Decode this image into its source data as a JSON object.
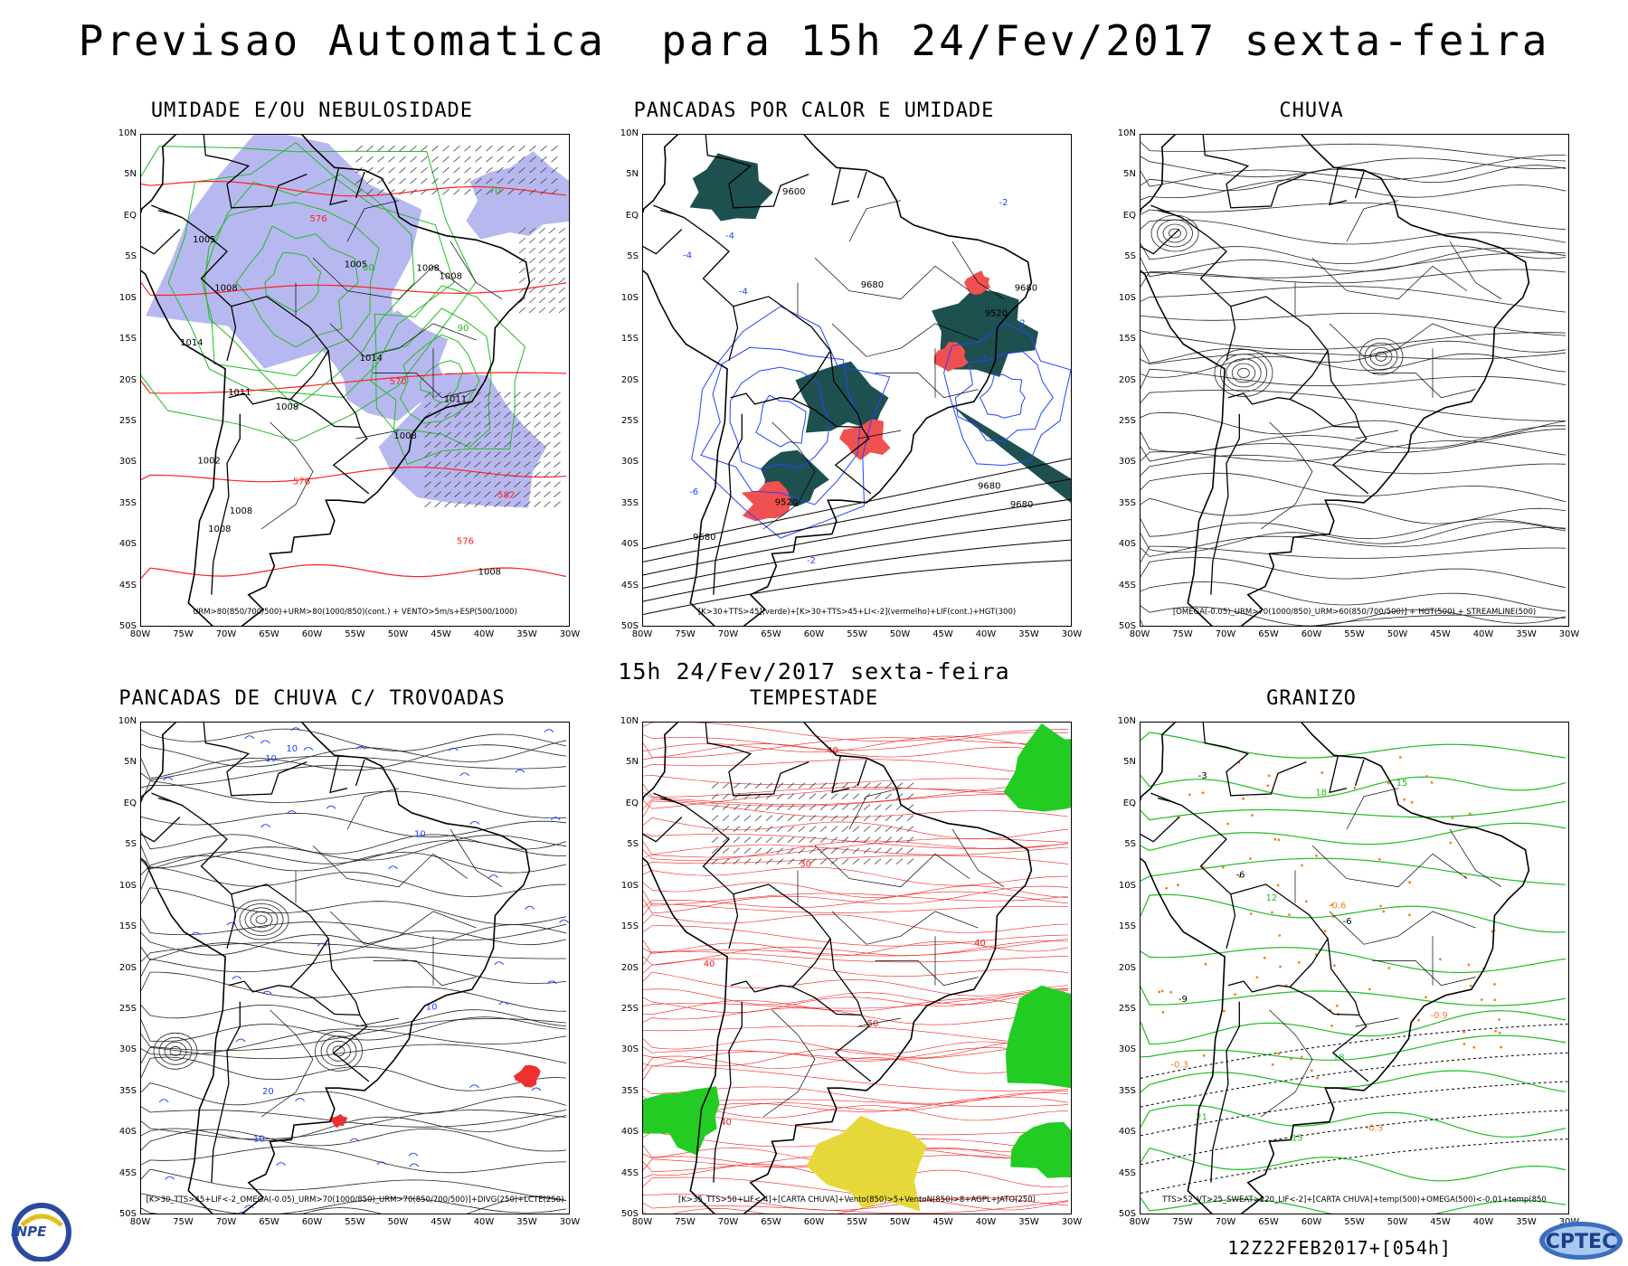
{
  "title": "Previsao Automatica  para 15h 24/Fev/2017 sexta-feira",
  "subtitle": "15h 24/Fev/2017 sexta-feira",
  "footer_run": "12Z22FEB2017+[054h]",
  "logos": {
    "left": "INPE",
    "right": "CPTEC"
  },
  "lat_labels": [
    "10N",
    "5N",
    "EQ",
    "5S",
    "10S",
    "15S",
    "20S",
    "25S",
    "30S",
    "35S",
    "40S",
    "45S",
    "50S"
  ],
  "lon_labels": [
    "80W",
    "75W",
    "70W",
    "65W",
    "60W",
    "55W",
    "50W",
    "45W",
    "40W",
    "35W",
    "30W"
  ],
  "colors": {
    "humidity_fill": "#b8b8f0",
    "contour_green": "#22bb22",
    "contour_red": "#ff2020",
    "contour_blue": "#2244ff",
    "teal_fill": "#1e5050",
    "storm_green": "#22cc22",
    "storm_yellow": "#e6d83a",
    "hail_orange": "#f08020"
  },
  "panels": [
    {
      "key": "humidity",
      "title": "UMIDADE E/OU NEBULOSIDADE",
      "legend": "URM>80(850/700/500)+URM>80(1000/850)(cont.) + VENTO>5m/s+ESP(500/1000)",
      "labels": [
        "1008",
        "1011",
        "1008",
        "1005",
        "582",
        "1008",
        "1008",
        "1008",
        "1008",
        "1005",
        "1008",
        "576",
        "576",
        "576",
        "570",
        "1002",
        "1011",
        "1014",
        "1014",
        "1008",
        "70",
        "80",
        "90"
      ]
    },
    {
      "key": "heat",
      "title": "PANCADAS POR CALOR E UMIDADE",
      "legend": "[K>30+TTS>45](verde)+[K>30+TTS>45+LI<-2](vermelho)+LIF(cont.)+HGT(300)",
      "labels": [
        "9680",
        "9680",
        "9680",
        "9680",
        "9680",
        "9600",
        "9520",
        "9520",
        "-2",
        "-4",
        "-2",
        "-4",
        "-2",
        "-2",
        "-6",
        "-4"
      ]
    },
    {
      "key": "rain",
      "title": "CHUVA",
      "legend": "[OMEGA(-0.05)_URM>70(1000/850)_URM>60(850/700/500)] + HGT(500) + STREAMLINE(500)",
      "labels": []
    },
    {
      "key": "thunder",
      "title": "PANCADAS DE CHUVA C/ TROVOADAS",
      "legend": "[K>30_TTS>45+LIF<-2_OMEGA(-0.05)_URM>70(1000/850)_URM>70(850/700/500)]+DIVG(250)+LCTE(250)",
      "labels": [
        "10",
        "10",
        "10",
        "10",
        "20",
        "10"
      ]
    },
    {
      "key": "storm",
      "title": "TEMPESTADE",
      "legend": "[K>35_TTS>50+LIF<-4]+[CARTA CHUVA]+Vento(850)>5+VentoN(850)>8+AGPL+JATO(250)",
      "labels": [
        "40",
        "50",
        "40",
        "40",
        "30",
        "40"
      ]
    },
    {
      "key": "hail",
      "title": "GRANIZO",
      "legend": "TTS>52_VT>25_SWEAT>220_LIF<-2]+[CARTA CHUVA]+temp(500)+OMEGA(500)<-0.01+temp(850",
      "labels": [
        "15",
        "18",
        "-6",
        "-0.3",
        "18",
        "15",
        "-0.9",
        "12",
        "21",
        "-3",
        "-6",
        "-9",
        "-0.6",
        "-0.3"
      ]
    }
  ]
}
